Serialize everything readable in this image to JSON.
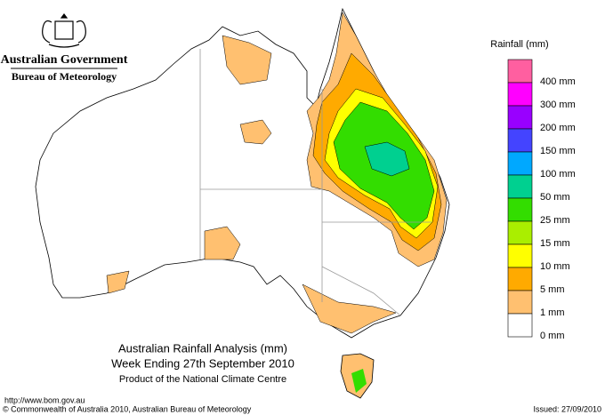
{
  "header": {
    "agency": "Australian Government",
    "bureau": "Bureau of Meteorology"
  },
  "legend": {
    "title": "Rainfall (mm)",
    "items": [
      {
        "label": "400 mm",
        "color": "#ff5fa0"
      },
      {
        "label": "300 mm",
        "color": "#ff00ff"
      },
      {
        "label": "200 mm",
        "color": "#9900ff"
      },
      {
        "label": "150 mm",
        "color": "#4444ff"
      },
      {
        "label": "100 mm",
        "color": "#00a8ff"
      },
      {
        "label": "50 mm",
        "color": "#00d090"
      },
      {
        "label": "25 mm",
        "color": "#33dd00"
      },
      {
        "label": "15 mm",
        "color": "#aaee00"
      },
      {
        "label": "10 mm",
        "color": "#ffff00"
      },
      {
        "label": "5 mm",
        "color": "#ffaa00"
      },
      {
        "label": "1 mm",
        "color": "#ffc070"
      },
      {
        "label": "0 mm",
        "color": "#ffffff"
      }
    ]
  },
  "title": {
    "line1": "Australian Rainfall Analysis (mm)",
    "line2": "Week Ending 27th September 2010",
    "line3": "Product of the National Climate Centre"
  },
  "footer": {
    "url": "http://www.bom.gov.au",
    "copyright": "© Commonwealth of Australia 2010, Australian Bureau of Meteorology",
    "issued": "Issued: 27/09/2010"
  }
}
